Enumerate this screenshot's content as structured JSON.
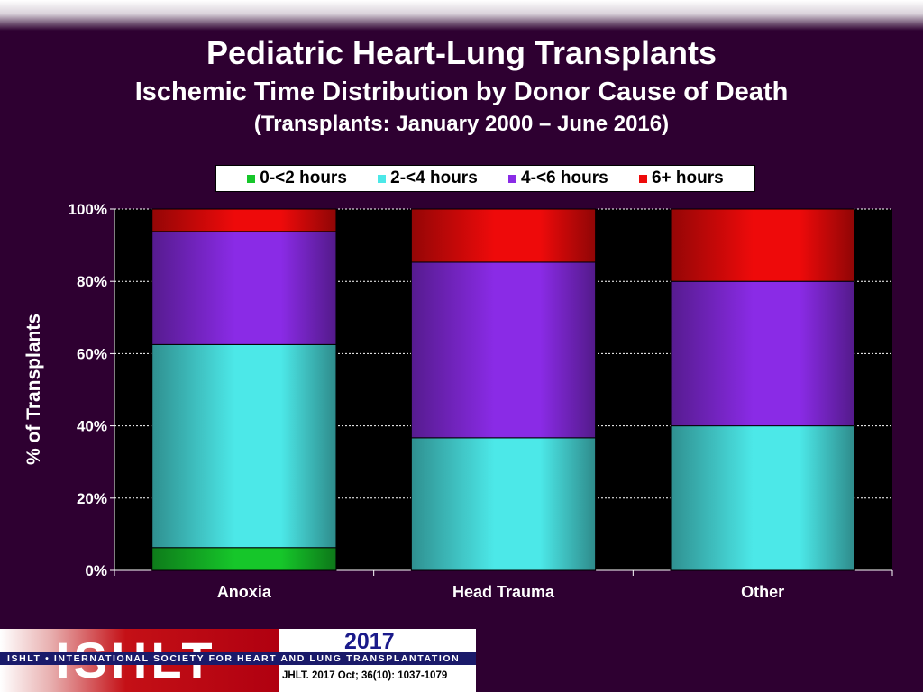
{
  "header": {
    "title": "Pediatric Heart-Lung Transplants",
    "subtitle": "Ischemic Time Distribution by Donor Cause of Death",
    "period": "(Transplants: January 2000 – June 2016)"
  },
  "chart_data": {
    "type": "bar",
    "stacked": true,
    "normalized_percent": true,
    "categories": [
      "Anoxia",
      "Head Trauma",
      "Other"
    ],
    "series": [
      {
        "name": "0-<2 hours",
        "color": "#16c62a",
        "values": [
          6.3,
          0,
          0
        ]
      },
      {
        "name": "2-<4 hours",
        "color": "#4ce8e8",
        "values": [
          56.2,
          36.7,
          40
        ]
      },
      {
        "name": "4-<6 hours",
        "color": "#8a2be6",
        "values": [
          31.3,
          48.6,
          40
        ]
      },
      {
        "name": "6+ hours",
        "color": "#ee0a0a",
        "values": [
          6.2,
          14.7,
          20
        ]
      }
    ],
    "ylabel": "% of Transplants",
    "ylim": [
      0,
      100
    ],
    "yticks": [
      "0%",
      "20%",
      "40%",
      "60%",
      "80%",
      "100%"
    ],
    "grid": true,
    "legend_position": "top",
    "plot_background": "#000000"
  },
  "footer": {
    "logo_text": "ISHLT",
    "org_name": "ISHLT • INTERNATIONAL SOCIETY FOR HEART AND LUNG TRANSPLANTATION",
    "year": "2017",
    "citation": "JHLT. 2017 Oct; 36(10): 1037-1079"
  }
}
